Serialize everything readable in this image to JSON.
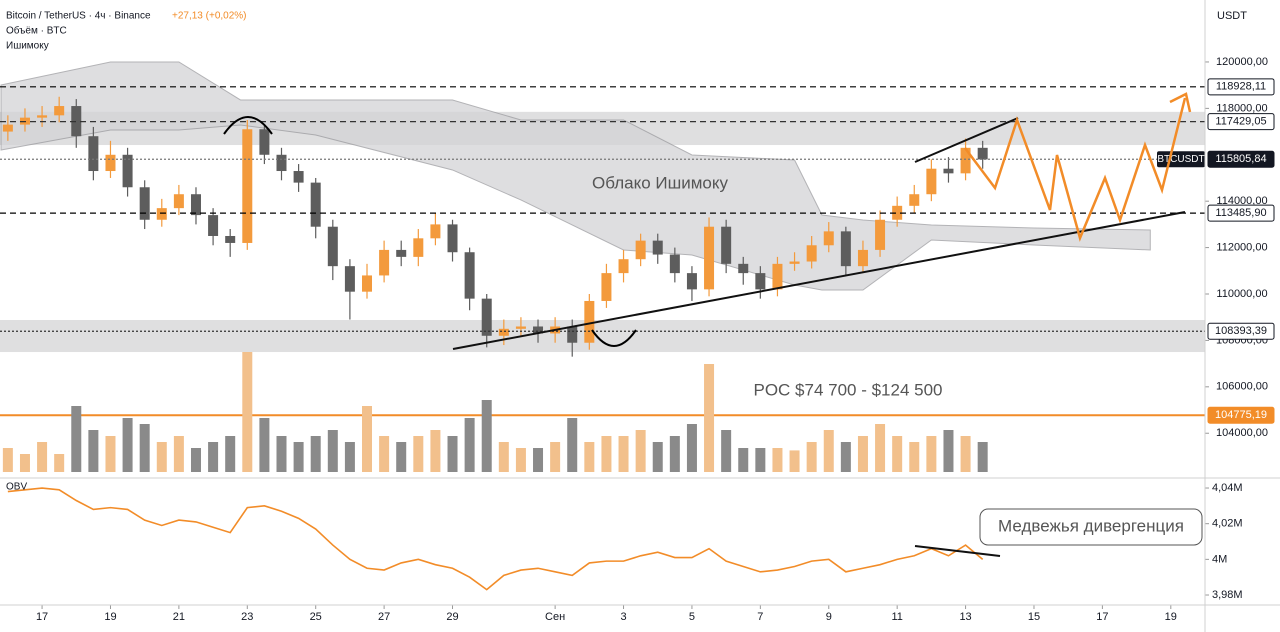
{
  "chart_data": [
    {
      "type": "candlestick",
      "title": "Bitcoin / TetherUS · 4ч · Binance",
      "change": "+27,13 (+0,02%)",
      "volume_label": "Объём · BTC",
      "ichimoku_label": "Ишимоку",
      "currency": "USDT",
      "x": [
        -1,
        -0.5,
        0,
        0.5,
        1,
        1.5,
        2,
        2.5,
        3,
        3.5,
        4,
        4.5,
        5,
        5.5,
        6,
        6.5,
        7,
        7.5,
        8,
        8.5,
        9,
        9.5,
        10,
        10.5,
        11,
        11.5,
        12,
        12.5,
        13,
        13.5,
        14,
        14.5,
        15,
        15.5,
        16,
        16.5,
        17,
        17.5,
        18,
        18.5,
        19,
        19.5,
        20,
        20.5,
        21,
        21.5,
        22,
        22.5,
        23,
        23.5,
        24,
        24.5,
        25,
        25.5,
        26,
        26.5,
        27,
        27.5
      ],
      "open": [
        117000,
        117300,
        117600,
        117700,
        118100,
        116800,
        115300,
        116000,
        114600,
        113200,
        113700,
        114300,
        113400,
        112500,
        112200,
        117100,
        116000,
        115300,
        114800,
        112900,
        111200,
        110100,
        110800,
        111900,
        111600,
        112400,
        113000,
        111800,
        109800,
        108200,
        108500,
        108600,
        108300,
        108600,
        107900,
        109700,
        110900,
        111500,
        112300,
        111700,
        110900,
        110200,
        112900,
        111300,
        110900,
        110200,
        111300,
        111400,
        112100,
        112700,
        111200,
        111900,
        113200,
        113800,
        114300,
        115400,
        115200,
        116300
      ],
      "high": [
        117700,
        118000,
        118100,
        118500,
        118400,
        117200,
        116600,
        116300,
        114900,
        114100,
        114700,
        114600,
        113700,
        112800,
        117500,
        117300,
        116300,
        115600,
        115000,
        113200,
        111500,
        111300,
        112300,
        112300,
        112800,
        113500,
        113200,
        112000,
        110000,
        108900,
        109000,
        108900,
        109000,
        108900,
        110000,
        111300,
        111900,
        112600,
        112600,
        112000,
        111200,
        113300,
        113200,
        111600,
        111200,
        111600,
        111800,
        112500,
        113100,
        112900,
        112300,
        113600,
        114200,
        114700,
        115800,
        115900,
        116700,
        116600
      ],
      "low": [
        116600,
        117000,
        117200,
        117400,
        116300,
        114900,
        115000,
        114200,
        112800,
        112900,
        113400,
        113000,
        112100,
        111600,
        111900,
        115600,
        114900,
        114400,
        112400,
        110600,
        108900,
        109800,
        110500,
        111200,
        111200,
        112100,
        111400,
        109300,
        107700,
        107800,
        108200,
        107900,
        107900,
        107300,
        107600,
        109400,
        110500,
        111200,
        111300,
        110500,
        109700,
        109900,
        110900,
        110400,
        109800,
        109900,
        111000,
        111100,
        111800,
        110800,
        110900,
        111600,
        112900,
        113500,
        114000,
        114800,
        114900,
        115400
      ],
      "close": [
        117300,
        117600,
        117700,
        118100,
        116800,
        115300,
        116000,
        114600,
        113200,
        113700,
        114300,
        113400,
        112500,
        112200,
        117100,
        116000,
        115300,
        114800,
        112900,
        111200,
        110100,
        110800,
        111900,
        111600,
        112400,
        113000,
        111800,
        109800,
        108200,
        108500,
        108600,
        108300,
        108600,
        107900,
        109700,
        110900,
        111500,
        112300,
        111700,
        110900,
        110200,
        112900,
        111300,
        110900,
        110200,
        111300,
        111400,
        112100,
        112700,
        111200,
        111900,
        113200,
        113800,
        114300,
        115400,
        115200,
        116300,
        115800
      ],
      "up_color": "#f39a3c",
      "down_color": "#5d5d5d",
      "xlim": [
        -1.23,
        34.0
      ],
      "ylim": [
        102200,
        122670
      ],
      "yticks": [
        {
          "value": 104000,
          "label": "104000,00"
        },
        {
          "value": 106000,
          "label": "106000,00"
        },
        {
          "value": 108000,
          "label": "108000,00"
        },
        {
          "value": 110000,
          "label": "110000,00"
        },
        {
          "value": 112000,
          "label": "112000,00"
        },
        {
          "value": 114000,
          "label": "114000,00"
        },
        {
          "value": 118000,
          "label": "118000,00"
        },
        {
          "value": 120000,
          "label": "120000,00"
        }
      ],
      "xticks": [
        {
          "value": 0,
          "label": "17"
        },
        {
          "value": 2,
          "label": "19"
        },
        {
          "value": 4,
          "label": "21"
        },
        {
          "value": 6,
          "label": "23"
        },
        {
          "value": 8,
          "label": "25"
        },
        {
          "value": 10,
          "label": "27"
        },
        {
          "value": 12,
          "label": "29"
        },
        {
          "value": 15,
          "label": "Сен"
        },
        {
          "value": 17,
          "label": "3"
        },
        {
          "value": 19,
          "label": "5"
        },
        {
          "value": 21,
          "label": "7"
        },
        {
          "value": 23,
          "label": "9"
        },
        {
          "value": 25,
          "label": "11"
        },
        {
          "value": 27,
          "label": "13"
        },
        {
          "value": 29,
          "label": "15"
        },
        {
          "value": 31,
          "label": "17"
        },
        {
          "value": 33,
          "label": "19"
        }
      ],
      "levels": [
        {
          "value": 118928.11,
          "label": "118928,11",
          "style": "dashed",
          "color": "#000000"
        },
        {
          "value": 117429.05,
          "label": "117429,05",
          "style": "dashed",
          "color": "#333333"
        },
        {
          "value": 115805.84,
          "label": "115805,84",
          "style": "dotted",
          "color": "#777777",
          "tag": "BTCUSDT"
        },
        {
          "value": 113485.9,
          "label": "113485,90",
          "style": "dashed",
          "color": "#000000"
        },
        {
          "value": 108393.39,
          "label": "108393,39",
          "style": "dotted",
          "color": "#333333"
        },
        {
          "value": 104775.19,
          "label": "104775,19",
          "style": "solid",
          "color": "#f28c28"
        }
      ],
      "zones": [
        [
          116420,
          117850
        ],
        [
          107500,
          108880
        ]
      ],
      "cloud": {
        "label": "Облако Ишимоку",
        "color": "#d3d3d6",
        "x": [
          -1.2,
          2,
          4,
          5.8,
          8,
          12,
          14,
          17,
          19,
          22,
          22.8,
          24,
          26,
          29,
          32.4
        ],
        "upper": [
          119009,
          120000,
          120000,
          118362,
          118362,
          118362,
          117500,
          117500,
          115991,
          115776,
          113405,
          113190,
          112974,
          112845,
          112759
        ],
        "lower": [
          116207,
          117069,
          117069,
          117284,
          116853,
          115345,
          114052,
          111897,
          111681,
          110388,
          110172,
          110172,
          112328,
          112112,
          111897
        ]
      },
      "annotation": "POC $74 700 - $124 500"
    },
    {
      "type": "volume",
      "ylim": [
        0,
        100
      ],
      "up_color": "#f2c08c",
      "down_color": "#8a8a8a",
      "values": [
        20,
        15,
        25,
        15,
        55,
        35,
        30,
        45,
        40,
        25,
        30,
        20,
        25,
        30,
        100,
        45,
        30,
        25,
        30,
        35,
        25,
        55,
        30,
        25,
        30,
        35,
        30,
        45,
        60,
        25,
        20,
        20,
        25,
        45,
        25,
        30,
        30,
        35,
        25,
        30,
        40,
        90,
        35,
        20,
        20,
        20,
        18,
        25,
        35,
        25,
        30,
        40,
        30,
        25,
        30,
        35,
        30,
        25
      ]
    },
    {
      "type": "line",
      "title": "OBV",
      "color": "#f28c28",
      "ylim": [
        3.9744,
        4.0445
      ],
      "yticks": [
        {
          "value": 4.04,
          "label": "4,04M"
        },
        {
          "value": 4.02,
          "label": "4,02M"
        },
        {
          "value": 4,
          "label": "4M"
        },
        {
          "value": 3.98,
          "label": "3,98M"
        }
      ],
      "values": [
        4.038,
        4.039,
        4.04,
        4.039,
        4.033,
        4.028,
        4.029,
        4.028,
        4.022,
        4.019,
        4.022,
        4.021,
        4.018,
        4.015,
        4.029,
        4.03,
        4.027,
        4.023,
        4.017,
        4.008,
        4.0,
        3.995,
        3.994,
        3.998,
        4.0,
        3.997,
        3.995,
        3.99,
        3.983,
        3.991,
        3.994,
        3.995,
        3.993,
        3.991,
        3.998,
        3.999,
        3.999,
        4.002,
        4.004,
        4.001,
        4.001,
        4.006,
        3.999,
        3.996,
        3.993,
        3.994,
        3.996,
        3.999,
        4.0,
        3.993,
        3.995,
        3.997,
        4.0,
        4.002,
        4.006,
        4.002,
        4.008,
        4.0
      ],
      "annotation": "Медвежья дивергенция"
    }
  ]
}
